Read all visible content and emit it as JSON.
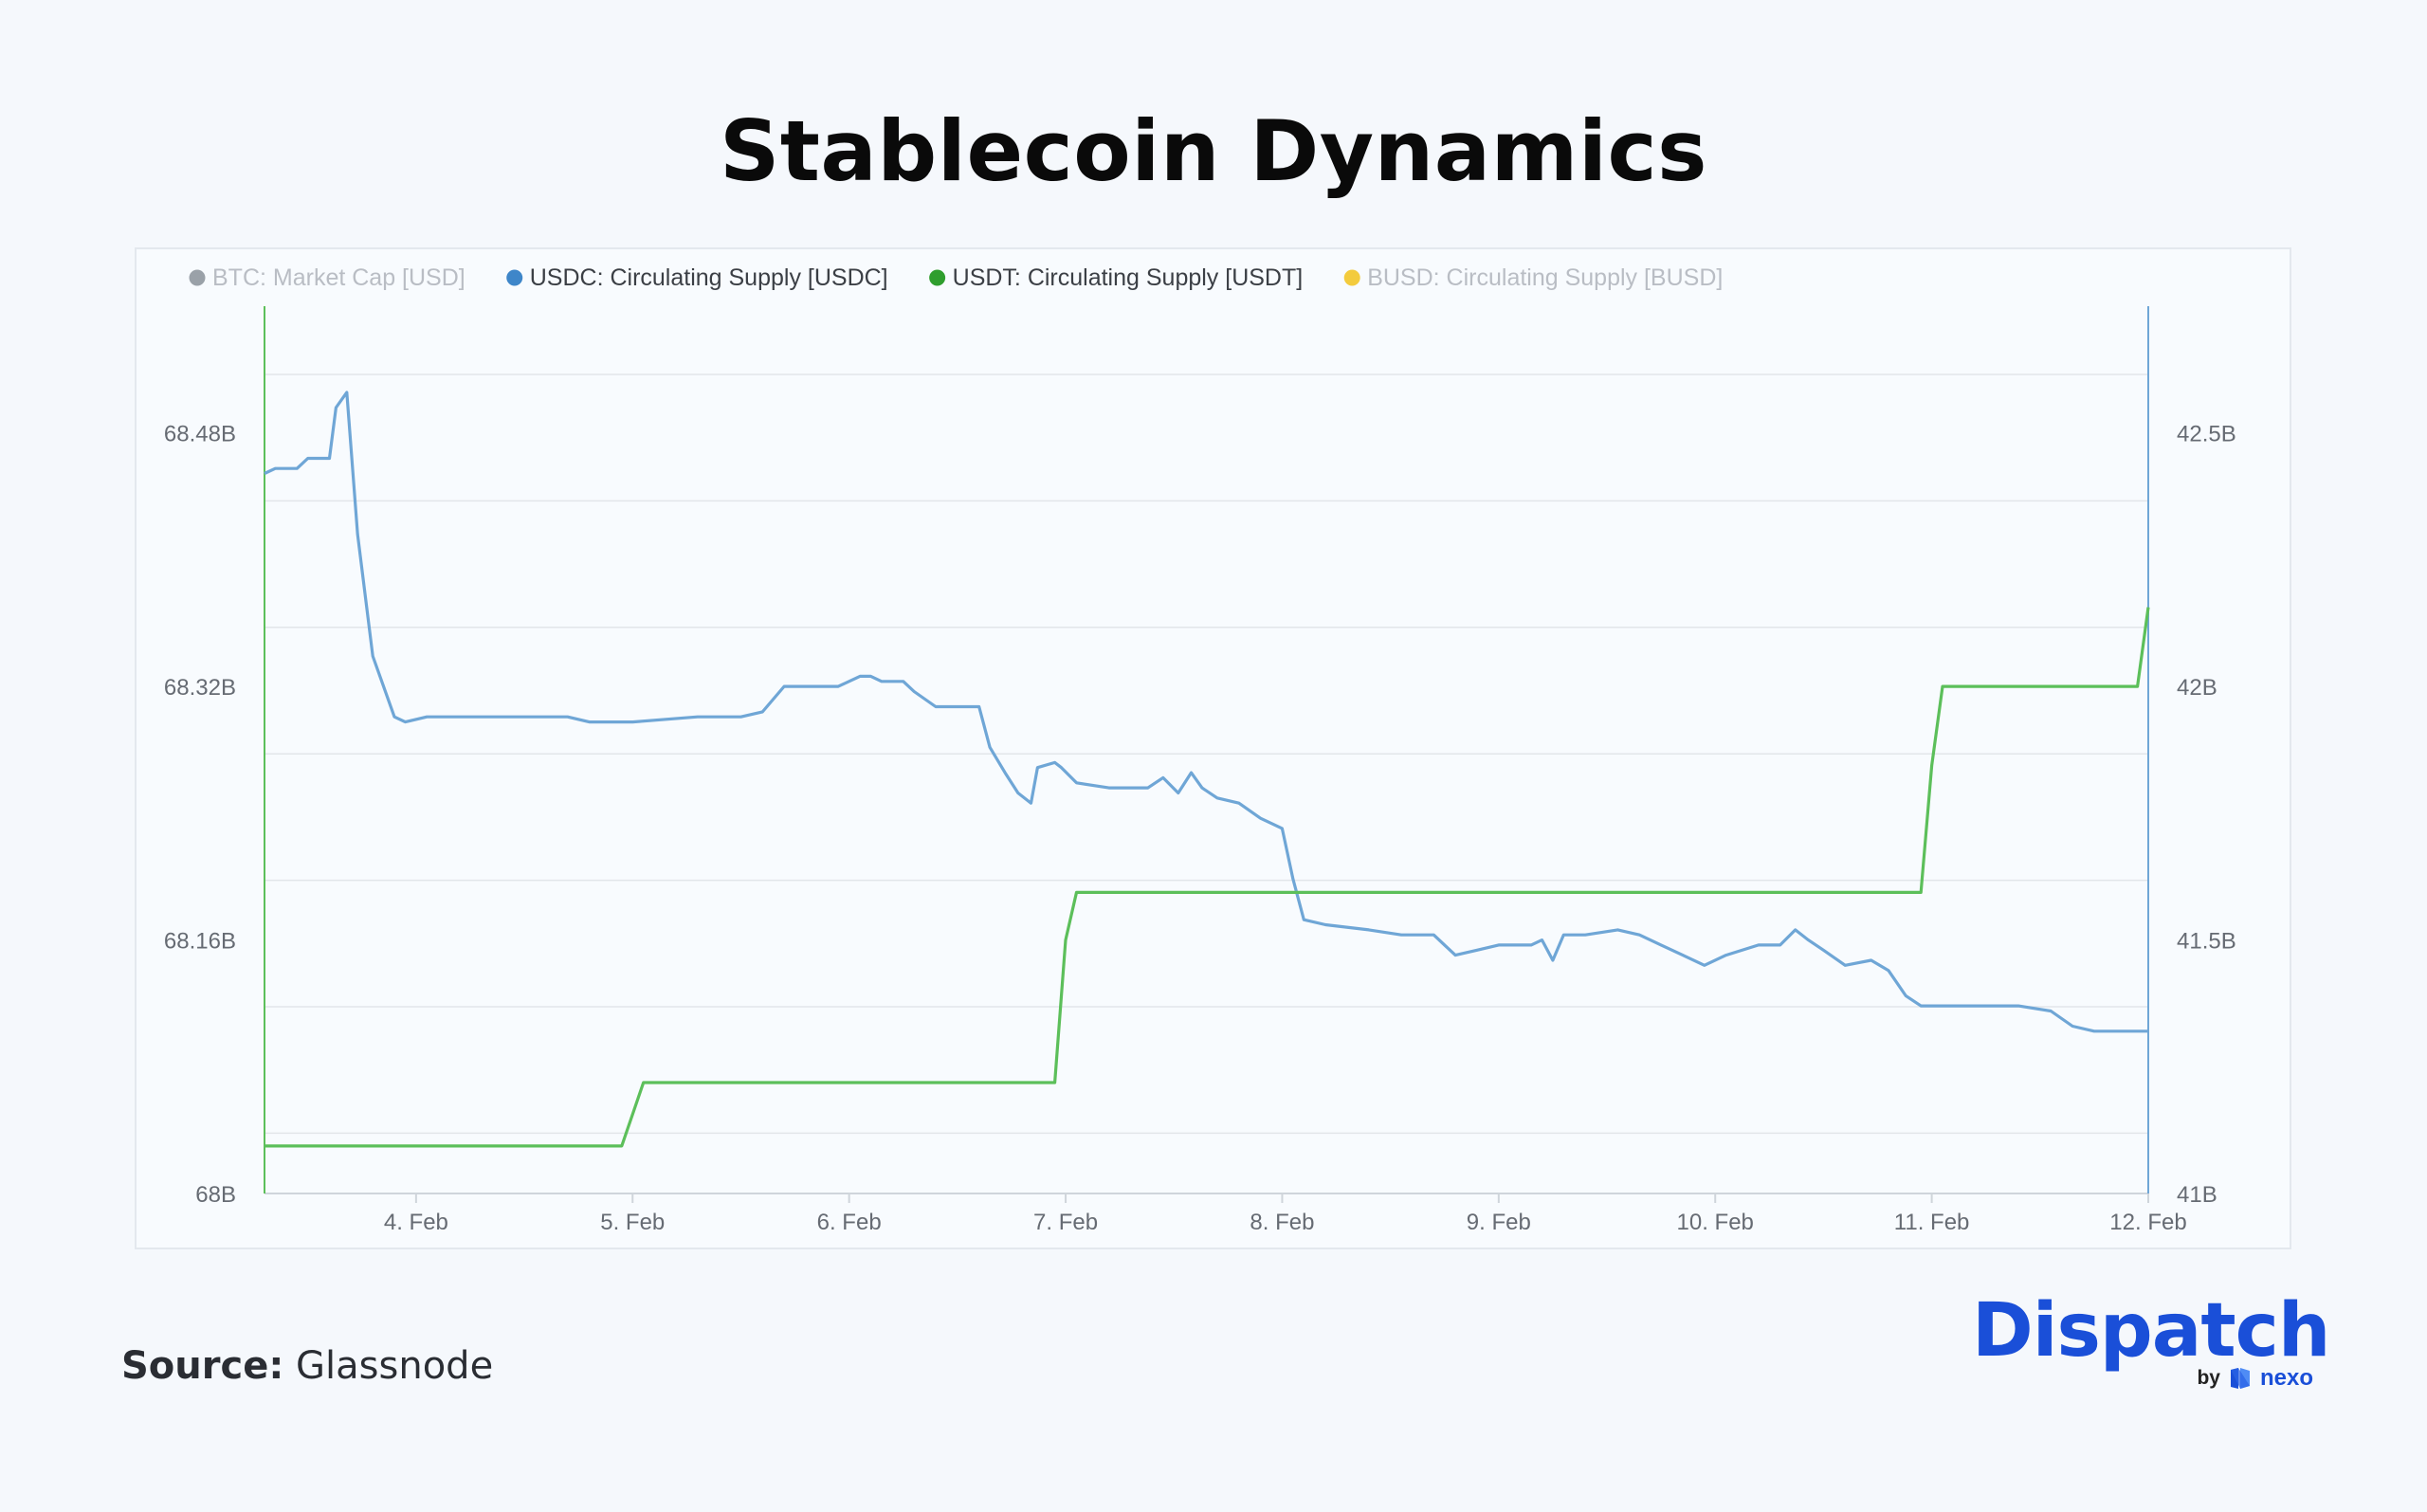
{
  "title": "Stablecoin Dynamics",
  "source": {
    "label": "Source:",
    "value": "Glassnode"
  },
  "brand": {
    "name": "Dispatch",
    "by": "by",
    "partner": "nexo"
  },
  "colors": {
    "btc": "#8a9099",
    "usdc": "#6fa6d6",
    "usdt": "#5cbf5a",
    "busd": "#f2c21b",
    "legend_active": "#3b3f45",
    "legend_inactive": "#b9bdc4",
    "brand": "#1a4fd8"
  },
  "chart_data": {
    "type": "line",
    "legend": [
      {
        "name": "BTC: Market Cap [USD]",
        "active": false,
        "color_key": "btc"
      },
      {
        "name": "USDC: Circulating Supply [USDC]",
        "active": true,
        "color_key": "usdc"
      },
      {
        "name": "USDT: Circulating Supply [USDT]",
        "active": true,
        "color_key": "usdt"
      },
      {
        "name": "BUSD: Circulating Supply [BUSD]",
        "active": false,
        "color_key": "busd"
      }
    ],
    "legend_position": "top-left",
    "x_range": [
      3.3,
      12.0
    ],
    "x_ticks": [
      {
        "label": "4. Feb",
        "value": 4
      },
      {
        "label": "5. Feb",
        "value": 5
      },
      {
        "label": "6. Feb",
        "value": 6
      },
      {
        "label": "7. Feb",
        "value": 7
      },
      {
        "label": "8. Feb",
        "value": 8
      },
      {
        "label": "9. Feb",
        "value": 9
      },
      {
        "label": "10. Feb",
        "value": 10
      },
      {
        "label": "11. Feb",
        "value": 11
      },
      {
        "label": "12. Feb",
        "value": 12
      }
    ],
    "y_left": {
      "range": [
        68.0,
        68.56
      ],
      "ticks": [
        {
          "label": "68B",
          "value": 68.0
        },
        {
          "label": "68.16B",
          "value": 68.16
        },
        {
          "label": "68.32B",
          "value": 68.32
        },
        {
          "label": "68.48B",
          "value": 68.48
        }
      ]
    },
    "y_right": {
      "range": [
        41.0,
        42.75
      ],
      "ticks": [
        {
          "label": "41B",
          "value": 41.0
        },
        {
          "label": "41.5B",
          "value": 41.5
        },
        {
          "label": "42B",
          "value": 42.0
        },
        {
          "label": "42.5B",
          "value": 42.5
        }
      ]
    },
    "grid": true,
    "series": [
      {
        "name": "USDC: Circulating Supply [USDC]",
        "axis": "right",
        "color_key": "usdc",
        "points": [
          [
            3.3,
            42.42
          ],
          [
            3.35,
            42.43
          ],
          [
            3.45,
            42.43
          ],
          [
            3.5,
            42.45
          ],
          [
            3.55,
            42.45
          ],
          [
            3.6,
            42.45
          ],
          [
            3.63,
            42.55
          ],
          [
            3.68,
            42.58
          ],
          [
            3.73,
            42.3
          ],
          [
            3.8,
            42.06
          ],
          [
            3.9,
            41.94
          ],
          [
            3.95,
            41.93
          ],
          [
            4.05,
            41.94
          ],
          [
            4.2,
            41.94
          ],
          [
            4.5,
            41.94
          ],
          [
            4.7,
            41.94
          ],
          [
            4.8,
            41.93
          ],
          [
            5.0,
            41.93
          ],
          [
            5.3,
            41.94
          ],
          [
            5.5,
            41.94
          ],
          [
            5.6,
            41.95
          ],
          [
            5.7,
            42.0
          ],
          [
            5.95,
            42.0
          ],
          [
            6.05,
            42.02
          ],
          [
            6.1,
            42.02
          ],
          [
            6.15,
            42.01
          ],
          [
            6.25,
            42.01
          ],
          [
            6.3,
            41.99
          ],
          [
            6.4,
            41.96
          ],
          [
            6.55,
            41.96
          ],
          [
            6.6,
            41.96
          ],
          [
            6.65,
            41.88
          ],
          [
            6.72,
            41.83
          ],
          [
            6.78,
            41.79
          ],
          [
            6.84,
            41.77
          ],
          [
            6.87,
            41.84
          ],
          [
            6.95,
            41.85
          ],
          [
            6.98,
            41.84
          ],
          [
            7.05,
            41.81
          ],
          [
            7.2,
            41.8
          ],
          [
            7.3,
            41.8
          ],
          [
            7.38,
            41.8
          ],
          [
            7.45,
            41.82
          ],
          [
            7.52,
            41.79
          ],
          [
            7.58,
            41.83
          ],
          [
            7.63,
            41.8
          ],
          [
            7.7,
            41.78
          ],
          [
            7.8,
            41.77
          ],
          [
            7.9,
            41.74
          ],
          [
            8.0,
            41.72
          ],
          [
            8.05,
            41.62
          ],
          [
            8.1,
            41.54
          ],
          [
            8.2,
            41.53
          ],
          [
            8.4,
            41.52
          ],
          [
            8.55,
            41.51
          ],
          [
            8.7,
            41.51
          ],
          [
            8.8,
            41.47
          ],
          [
            8.9,
            41.48
          ],
          [
            9.0,
            41.49
          ],
          [
            9.15,
            41.49
          ],
          [
            9.2,
            41.5
          ],
          [
            9.25,
            41.46
          ],
          [
            9.3,
            41.51
          ],
          [
            9.4,
            41.51
          ],
          [
            9.55,
            41.52
          ],
          [
            9.65,
            41.51
          ],
          [
            9.75,
            41.49
          ],
          [
            9.85,
            41.47
          ],
          [
            9.95,
            41.45
          ],
          [
            10.05,
            41.47
          ],
          [
            10.2,
            41.49
          ],
          [
            10.3,
            41.49
          ],
          [
            10.37,
            41.52
          ],
          [
            10.43,
            41.5
          ],
          [
            10.5,
            41.48
          ],
          [
            10.6,
            41.45
          ],
          [
            10.72,
            41.46
          ],
          [
            10.8,
            41.44
          ],
          [
            10.88,
            41.39
          ],
          [
            10.95,
            41.37
          ],
          [
            11.1,
            41.37
          ],
          [
            11.25,
            41.37
          ],
          [
            11.4,
            41.37
          ],
          [
            11.55,
            41.36
          ],
          [
            11.65,
            41.33
          ],
          [
            11.75,
            41.32
          ],
          [
            11.85,
            41.32
          ],
          [
            12.0,
            41.32
          ]
        ]
      },
      {
        "name": "USDT: Circulating Supply [USDT]",
        "axis": "left",
        "color_key": "usdt",
        "points": [
          [
            3.3,
            68.03
          ],
          [
            4.95,
            68.03
          ],
          [
            5.0,
            68.05
          ],
          [
            5.05,
            68.07
          ],
          [
            6.95,
            68.07
          ],
          [
            7.0,
            68.16
          ],
          [
            7.05,
            68.19
          ],
          [
            9.95,
            68.19
          ],
          [
            10.05,
            68.19
          ],
          [
            10.95,
            68.19
          ],
          [
            11.0,
            68.27
          ],
          [
            11.05,
            68.32
          ],
          [
            11.95,
            68.32
          ],
          [
            12.0,
            68.37
          ]
        ]
      }
    ]
  }
}
